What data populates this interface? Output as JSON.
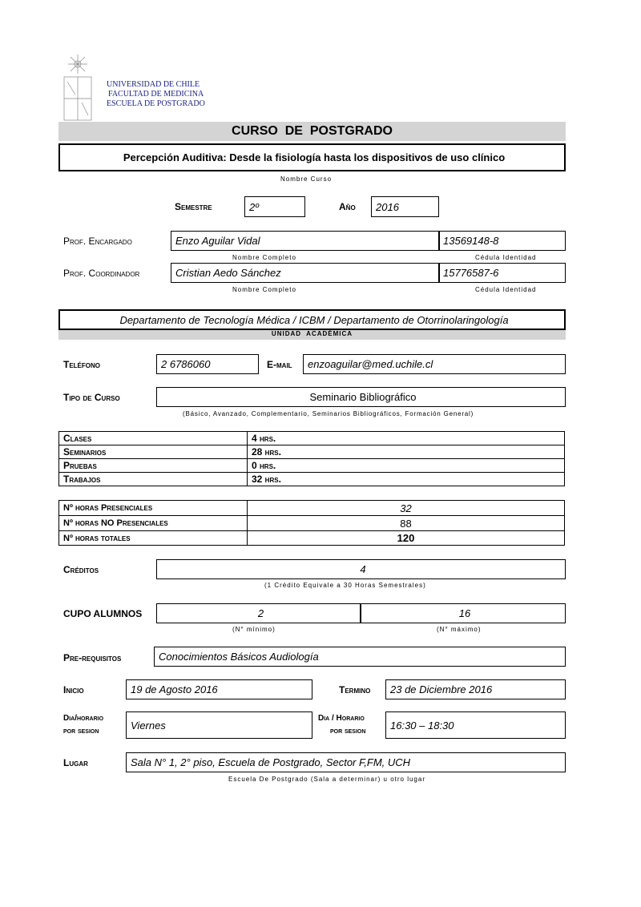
{
  "header": {
    "university": "UNIVERSIDAD DE CHILE",
    "faculty": "FACULTAD DE MEDICINA",
    "school": "ESCUELA DE POSTGRADO",
    "title": "CURSO  DE  POSTGRADO"
  },
  "course": {
    "name": "Percepción Auditiva: Desde la fisiología hasta los dispositivos de uso clínico",
    "name_caption": "Nombre  Curso"
  },
  "semester": {
    "label": "Semestre",
    "value": "2º",
    "year_label": "Año",
    "year": "2016"
  },
  "prof_encargado": {
    "label": "Prof. Encargado",
    "name": "Enzo Aguilar Vidal",
    "id": "13569148-8"
  },
  "prof_coordinador": {
    "label": "Prof. Coordinador",
    "name": "Cristian Aedo Sánchez",
    "id": "15776587-6"
  },
  "captions": {
    "full_name": "Nombre Completo",
    "id": "Cédula Identidad"
  },
  "unit": {
    "value": "Departamento de Tecnología Médica / ICBM / Departamento de Otorrinolaringología",
    "label": "UNIDAD  ACADÉMICA"
  },
  "contact": {
    "phone_label": "Teléfono",
    "phone": "2 6786060",
    "email_label": "E-mail",
    "email": "enzoaguilar@med.uchile.cl"
  },
  "course_type": {
    "label": "Tipo de Curso",
    "value": "Seminario Bibliográfico",
    "caption": "(Básico, Avanzado, Complementario, Seminarios Bibliográficos, Formación General)"
  },
  "hours": [
    {
      "label": "Clases",
      "value": "4  hrs."
    },
    {
      "label": "Seminarios",
      "value": "28  hrs."
    },
    {
      "label": "Pruebas",
      "value": "0 hrs."
    },
    {
      "label": "Trabajos",
      "value": "32 hrs."
    }
  ],
  "totals": [
    {
      "label": "Nº horas Presenciales",
      "value": "32"
    },
    {
      "label": "Nº horas NO Presenciales",
      "value": "88"
    },
    {
      "label": "Nº horas totales",
      "value": "120"
    }
  ],
  "credits": {
    "label": "Créditos",
    "value": "4",
    "caption": "(1 Crédito Equivale a 30 Horas Semestrales)"
  },
  "cupo": {
    "label": "CUPO ALUMNOS",
    "min": "2",
    "max": "16",
    "min_caption": "(N° mínimo)",
    "max_caption": "(N° máximo)"
  },
  "prereq": {
    "label": "Pre-requisitos",
    "value": "Conocimientos Básicos Audiología"
  },
  "dates": {
    "start_label": "Inicio",
    "start": "19 de Agosto 2016",
    "end_label": "Termino",
    "end": "23 de Diciembre 2016"
  },
  "schedule": {
    "day_label_1": "Dia/horario",
    "day_label_2": "por sesion",
    "day": "Viernes",
    "time_label_1": "Dia / Horario",
    "time_label_2": "por sesion",
    "time": "16:30 – 18:30"
  },
  "place": {
    "label": "Lugar",
    "value": "Sala N° 1, 2° piso, Escuela de Postgrado, Sector F,FM, UCH",
    "caption": "Escuela De Postgrado (Sala a determinar) u otro lugar"
  }
}
